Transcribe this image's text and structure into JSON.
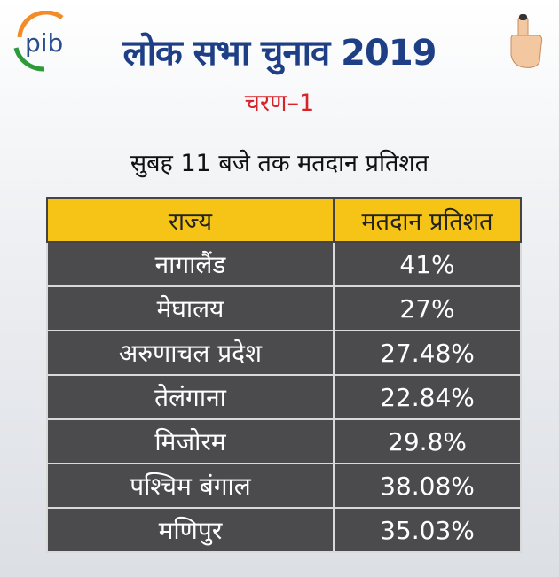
{
  "header": {
    "logo": "pib",
    "title": "लोक सभा चुनाव 2019",
    "subtitle": "चरण–1",
    "caption": "सुबह 11 बजे तक मतदान प्रतिशत"
  },
  "table": {
    "columns": [
      "राज्य",
      "मतदान प्रतिशत"
    ],
    "rows": [
      [
        "नागालैंड",
        "41%"
      ],
      [
        "मेघालय",
        "27%"
      ],
      [
        "अरुणाचल प्रदेश",
        "27.48%"
      ],
      [
        "तेलंगाना",
        "22.84%"
      ],
      [
        "मिजोरम",
        "29.8%"
      ],
      [
        "पश्चिम बंगाल",
        "38.08%"
      ],
      [
        "मणिपुर",
        "35.03%"
      ]
    ]
  }
}
